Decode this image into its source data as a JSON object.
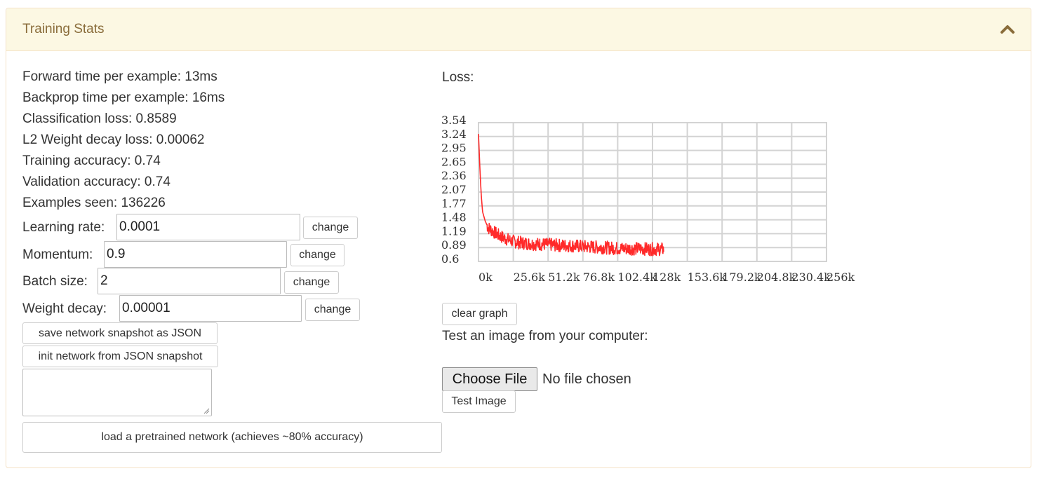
{
  "panel": {
    "title": "Training Stats",
    "collapse_icon": "chevron-up-icon"
  },
  "stats": {
    "forward_time": "Forward time per example: 13ms",
    "backprop_time": "Backprop time per example: 16ms",
    "classification_loss": "Classification loss: 0.8589",
    "l2_loss": "L2 Weight decay loss: 0.00062",
    "training_accuracy": "Training accuracy: 0.74",
    "validation_accuracy": "Validation accuracy: 0.74",
    "examples_seen": "Examples seen: 136226"
  },
  "params": {
    "learning_rate": {
      "label": "Learning rate:",
      "value": "0.0001",
      "button": "change"
    },
    "momentum": {
      "label": "Momentum:",
      "value": "0.9",
      "button": "change"
    },
    "batch_size": {
      "label": "Batch size:",
      "value": "2",
      "button": "change"
    },
    "weight_decay": {
      "label": "Weight decay:",
      "value": "0.00001",
      "button": "change"
    }
  },
  "snapshot": {
    "save_label": "save network snapshot as JSON",
    "init_label": "init network from JSON snapshot",
    "json_text": "",
    "pretrained_label": "load a pretrained network (achieves ~80% accuracy)"
  },
  "loss_panel": {
    "label": "Loss:",
    "clear_label": "clear graph",
    "test_label": "Test an image from your computer:",
    "choose_file_label": "Choose File",
    "no_file_label": "No file chosen",
    "test_image_label": "Test Image"
  },
  "chart_data": {
    "type": "line",
    "title": "",
    "xlabel": "",
    "ylabel": "",
    "x_tick_labels": [
      "0k",
      "25.6k",
      "51.2k",
      "76.8k",
      "102.4k",
      "128k",
      "153.6k",
      "179.2k",
      "204.8k",
      "230.4k",
      "256k"
    ],
    "y_tick_labels": [
      "3.54",
      "3.24",
      "2.95",
      "2.65",
      "2.36",
      "2.07",
      "1.77",
      "1.48",
      "1.19",
      "0.89",
      "0.6"
    ],
    "xlim": [
      0,
      256000
    ],
    "ylim": [
      0.6,
      3.54
    ],
    "grid": true,
    "line_color": "#ff2a2a",
    "series": [
      {
        "x": [
          0,
          1000,
          2000,
          3000,
          5000,
          7000,
          10000,
          15000,
          20000,
          25000,
          30000,
          40000,
          50000,
          60000,
          70000,
          80000,
          90000,
          100000,
          110000,
          120000,
          128000,
          136226
        ],
        "y": [
          3.3,
          2.6,
          2.0,
          1.65,
          1.45,
          1.32,
          1.25,
          1.15,
          1.08,
          1.03,
          1.0,
          0.97,
          0.96,
          0.94,
          0.93,
          0.91,
          0.9,
          0.88,
          0.87,
          0.87,
          0.86,
          0.86
        ]
      }
    ]
  }
}
